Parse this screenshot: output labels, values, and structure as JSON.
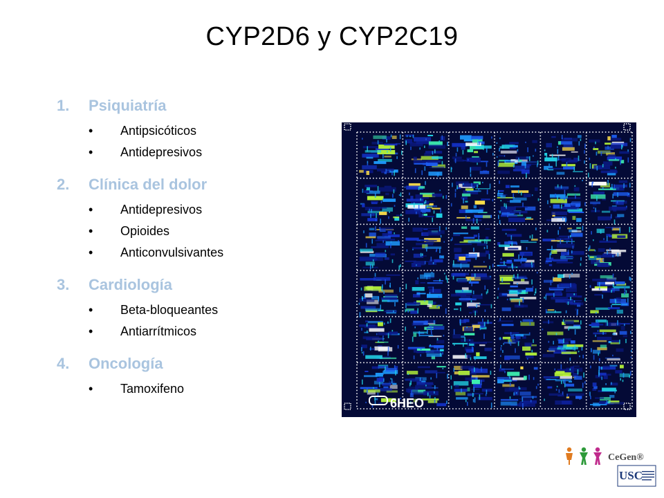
{
  "slide": {
    "title": "CYP2D6 y CYP2C19",
    "sections": [
      {
        "number": "1.",
        "heading": "Psiquiatría",
        "items": [
          "Antipsicóticos",
          "Antidepresivos"
        ]
      },
      {
        "number": "2.",
        "heading": "Clínica del dolor",
        "items": [
          "Antidepresivos",
          "Opioides",
          "Anticonvulsivantes"
        ]
      },
      {
        "number": "3.",
        "heading": "Cardiología",
        "items": [
          "Beta-bloqueantes",
          "Antiarrítmicos"
        ]
      },
      {
        "number": "4.",
        "heading": "Oncología",
        "items": [
          "Tamoxifeno"
        ]
      }
    ],
    "bullet_symbol": "•",
    "heading_color": "#a9c4df"
  },
  "microarray": {
    "label": "6HEO"
  },
  "logos": {
    "cegen": "CeGen®",
    "usc": "USC"
  }
}
